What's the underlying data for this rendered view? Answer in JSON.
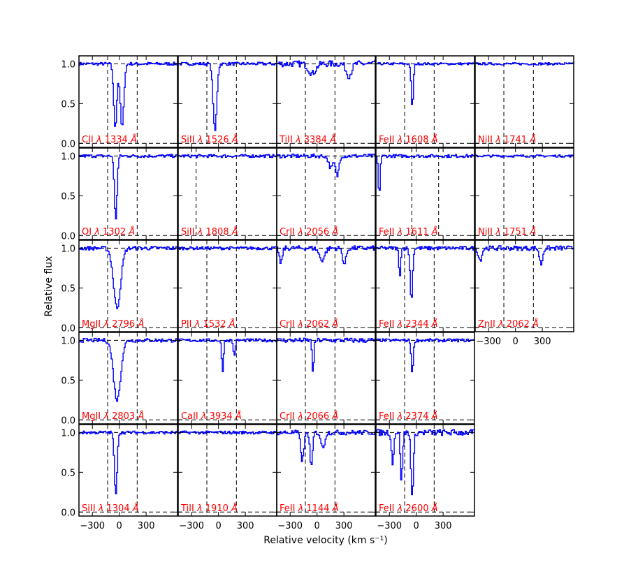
{
  "chart_data": {
    "type": "line",
    "xlabel": "Relative velocity (km s⁻¹)",
    "ylabel": "Relative flux",
    "xlim": [
      -450,
      650
    ],
    "ylim": [
      -0.05,
      1.1
    ],
    "x_ticks": [
      -300,
      0,
      300
    ],
    "x_tick_labels": [
      "−300",
      "0",
      "300"
    ],
    "y_ticks": [
      0.0,
      0.5,
      1.0
    ],
    "y_tick_labels": [
      "0.0",
      "0.5",
      "1.0"
    ],
    "line_color": "#0000ff",
    "label_color": "#ff0000",
    "grid": false,
    "panels": [
      {
        "row": 0,
        "col": 0,
        "ion": "CII",
        "wave": "1334",
        "vlines": [
          -130,
          200
        ],
        "absorptions": [
          {
            "v": -50,
            "depth": 0.8,
            "w": 18
          },
          {
            "v": 25,
            "depth": 0.8,
            "w": 20
          }
        ],
        "noise": 0.02
      },
      {
        "row": 0,
        "col": 1,
        "ion": "SiII",
        "wave": "1526",
        "vlines": [
          -130,
          200
        ],
        "absorptions": [
          {
            "v": -45,
            "depth": 0.85,
            "w": 20
          }
        ],
        "noise": 0.02
      },
      {
        "row": 0,
        "col": 2,
        "ion": "TiII",
        "wave": "3384",
        "vlines": [
          -130,
          200
        ],
        "absorptions": [
          {
            "v": -60,
            "depth": 0.12,
            "w": 40
          },
          {
            "v": 350,
            "depth": 0.15,
            "w": 30
          }
        ],
        "noise": 0.04
      },
      {
        "row": 0,
        "col": 3,
        "ion": "FeII",
        "wave": "1608",
        "vlines": [
          -130,
          200
        ],
        "absorptions": [
          {
            "v": -50,
            "depth": 0.55,
            "w": 12
          }
        ],
        "noise": 0.015
      },
      {
        "row": 0,
        "col": 4,
        "ion": "NiII",
        "wave": "1741",
        "vlines": [
          -130,
          200
        ],
        "absorptions": [],
        "noise": 0.015
      },
      {
        "row": 1,
        "col": 0,
        "ion": "OI",
        "wave": "1302",
        "vlines": [
          -130,
          200
        ],
        "absorptions": [
          {
            "v": -45,
            "depth": 0.8,
            "w": 15
          }
        ],
        "noise": 0.02
      },
      {
        "row": 1,
        "col": 1,
        "ion": "SiII",
        "wave": "1808",
        "vlines": [
          -250,
          200
        ],
        "absorptions": [],
        "noise": 0.02
      },
      {
        "row": 1,
        "col": 2,
        "ion": "CrII",
        "wave": "2056",
        "vlines": [
          -130,
          200
        ],
        "absorptions": [
          {
            "v": 150,
            "depth": 0.15,
            "w": 25
          },
          {
            "v": 220,
            "depth": 0.25,
            "w": 18
          }
        ],
        "noise": 0.025
      },
      {
        "row": 1,
        "col": 3,
        "ion": "FeII",
        "wave": "1611",
        "vlines": [
          -50,
          250
        ],
        "absorptions": [
          {
            "v": -420,
            "depth": 0.5,
            "w": 10
          }
        ],
        "noise": 0.02
      },
      {
        "row": 1,
        "col": 4,
        "ion": "NiII",
        "wave": "1751",
        "vlines": [
          -130,
          200
        ],
        "absorptions": [],
        "noise": 0.015
      },
      {
        "row": 2,
        "col": 0,
        "ion": "MgII",
        "wave": "2796",
        "vlines": [
          -130,
          200
        ],
        "absorptions": [
          {
            "v": -30,
            "depth": 0.75,
            "w": 40
          }
        ],
        "noise": 0.025
      },
      {
        "row": 2,
        "col": 1,
        "ion": "PII",
        "wave": "1532",
        "vlines": [
          -130,
          200
        ],
        "absorptions": [],
        "noise": 0.02
      },
      {
        "row": 2,
        "col": 2,
        "ion": "CrII",
        "wave": "2062",
        "vlines": [
          -130,
          200
        ],
        "absorptions": [
          {
            "v": -410,
            "depth": 0.2,
            "w": 15
          },
          {
            "v": 50,
            "depth": 0.15,
            "w": 30
          },
          {
            "v": 300,
            "depth": 0.2,
            "w": 20
          }
        ],
        "noise": 0.03
      },
      {
        "row": 2,
        "col": 3,
        "ion": "FeII",
        "wave": "2344",
        "vlines": [
          -130,
          200
        ],
        "absorptions": [
          {
            "v": -190,
            "depth": 0.35,
            "w": 10
          },
          {
            "v": -60,
            "depth": 0.65,
            "w": 14
          }
        ],
        "noise": 0.025
      },
      {
        "row": 2,
        "col": 4,
        "ion": "ZnII",
        "wave": "2062",
        "vlines": [
          -130,
          200
        ],
        "absorptions": [
          {
            "v": -400,
            "depth": 0.15,
            "w": 20
          },
          {
            "v": 280,
            "depth": 0.2,
            "w": 18
          }
        ],
        "noise": 0.03
      },
      {
        "row": 3,
        "col": 0,
        "ion": "MgII",
        "wave": "2803",
        "vlines": [
          -130,
          200
        ],
        "absorptions": [
          {
            "v": -30,
            "depth": 0.75,
            "w": 40
          }
        ],
        "noise": 0.025
      },
      {
        "row": 3,
        "col": 1,
        "ion": "CaII",
        "wave": "3934",
        "vlines": [
          -130,
          200
        ],
        "absorptions": [
          {
            "v": 40,
            "depth": 0.4,
            "w": 10
          },
          {
            "v": 170,
            "depth": 0.2,
            "w": 10
          }
        ],
        "noise": 0.02
      },
      {
        "row": 3,
        "col": 2,
        "ion": "CrII",
        "wave": "2066",
        "vlines": [
          -130,
          200
        ],
        "absorptions": [
          {
            "v": -50,
            "depth": 0.4,
            "w": 10
          }
        ],
        "noise": 0.03
      },
      {
        "row": 3,
        "col": 3,
        "ion": "FeII",
        "wave": "2374",
        "vlines": [
          -130,
          200
        ],
        "absorptions": [
          {
            "v": -50,
            "depth": 0.4,
            "w": 12
          }
        ],
        "noise": 0.02
      },
      {
        "row": 4,
        "col": 0,
        "ion": "SiII",
        "wave": "1304",
        "vlines": [
          -130,
          200
        ],
        "absorptions": [
          {
            "v": -45,
            "depth": 0.8,
            "w": 15
          }
        ],
        "noise": 0.02
      },
      {
        "row": 4,
        "col": 1,
        "ion": "TiII",
        "wave": "1910",
        "vlines": [
          -130,
          200
        ],
        "absorptions": [],
        "noise": 0.02
      },
      {
        "row": 4,
        "col": 2,
        "ion": "FeII",
        "wave": "1144",
        "vlines": [
          -130,
          200
        ],
        "absorptions": [
          {
            "v": -170,
            "depth": 0.35,
            "w": 18
          },
          {
            "v": -70,
            "depth": 0.45,
            "w": 14
          },
          {
            "v": 60,
            "depth": 0.2,
            "w": 20
          }
        ],
        "noise": 0.03
      },
      {
        "row": 4,
        "col": 3,
        "ion": "FeII",
        "wave": "2600",
        "vlines": [
          -130,
          200
        ],
        "absorptions": [
          {
            "v": -270,
            "depth": 0.4,
            "w": 12
          },
          {
            "v": -170,
            "depth": 0.6,
            "w": 12
          },
          {
            "v": -50,
            "depth": 0.8,
            "w": 14
          }
        ],
        "noise": 0.04
      }
    ]
  }
}
